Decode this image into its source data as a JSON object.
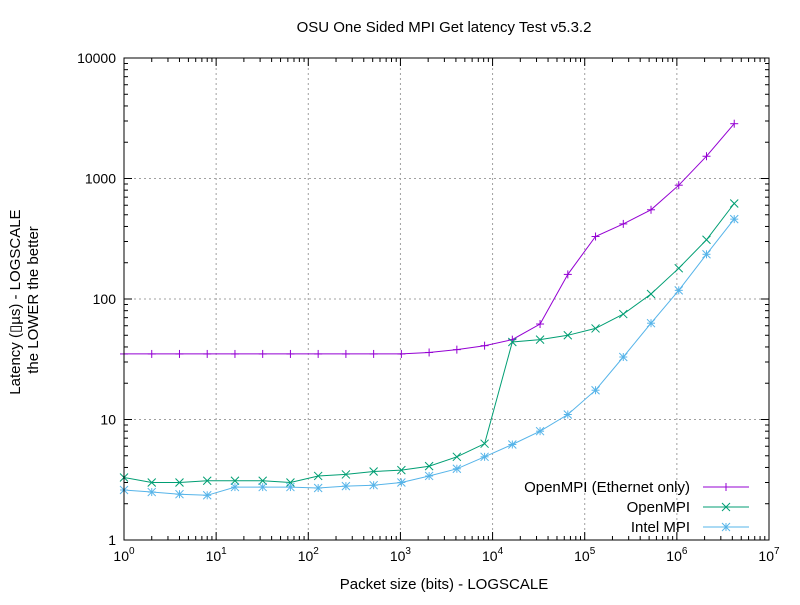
{
  "chart_data": {
    "type": "line",
    "title": "OSU One Sided MPI Get latency Test v5.3.2",
    "xlabel": "Packet size (bits) - LOGSCALE",
    "ylabel_line1": "Latency (▯µs) - LOGSCALE",
    "ylabel_line2": "the LOWER the better",
    "xscale": "log",
    "yscale": "log",
    "xlim": [
      1,
      10000000
    ],
    "ylim": [
      1,
      10000
    ],
    "grid": true,
    "legend_position": "bottom-right",
    "x_ticks": [
      {
        "value": 1,
        "base": "10",
        "exp": "0"
      },
      {
        "value": 10,
        "base": "10",
        "exp": "1"
      },
      {
        "value": 100,
        "base": "10",
        "exp": "2"
      },
      {
        "value": 1000,
        "base": "10",
        "exp": "3"
      },
      {
        "value": 10000,
        "base": "10",
        "exp": "4"
      },
      {
        "value": 100000,
        "base": "10",
        "exp": "5"
      },
      {
        "value": 1000000,
        "base": "10",
        "exp": "6"
      },
      {
        "value": 10000000,
        "base": "10",
        "exp": "7"
      }
    ],
    "y_ticks": [
      {
        "value": 1,
        "label": "1"
      },
      {
        "value": 10,
        "label": "10"
      },
      {
        "value": 100,
        "label": "100"
      },
      {
        "value": 1000,
        "label": "1000"
      },
      {
        "value": 10000,
        "label": "10000"
      }
    ],
    "x": [
      1,
      2,
      4,
      8,
      16,
      32,
      64,
      128,
      256,
      512,
      1024,
      2048,
      4096,
      8192,
      16384,
      32768,
      65536,
      131072,
      262144,
      524288,
      1048576,
      2097152,
      4194304
    ],
    "series": [
      {
        "name": "OpenMPI (Ethernet only)",
        "color": "#9400d3",
        "marker": "plus",
        "values": [
          35,
          35,
          35,
          35,
          35,
          35,
          35,
          35,
          35,
          35,
          35,
          36,
          38,
          41,
          46,
          62,
          160,
          330,
          420,
          550,
          880,
          1530,
          2850
        ]
      },
      {
        "name": "OpenMPI",
        "color": "#009e73",
        "marker": "cross",
        "values": [
          3.3,
          3.0,
          3.0,
          3.1,
          3.1,
          3.1,
          3.0,
          3.4,
          3.5,
          3.7,
          3.8,
          4.1,
          4.9,
          6.3,
          44,
          46,
          50,
          57,
          75,
          110,
          180,
          310,
          620
        ]
      },
      {
        "name": "Intel MPI",
        "color": "#56b4e9",
        "marker": "star",
        "values": [
          2.6,
          2.5,
          2.4,
          2.35,
          2.75,
          2.75,
          2.75,
          2.7,
          2.8,
          2.85,
          3.0,
          3.4,
          3.9,
          4.9,
          6.2,
          8.0,
          11,
          17.5,
          33,
          63,
          118,
          235,
          460
        ]
      }
    ]
  }
}
